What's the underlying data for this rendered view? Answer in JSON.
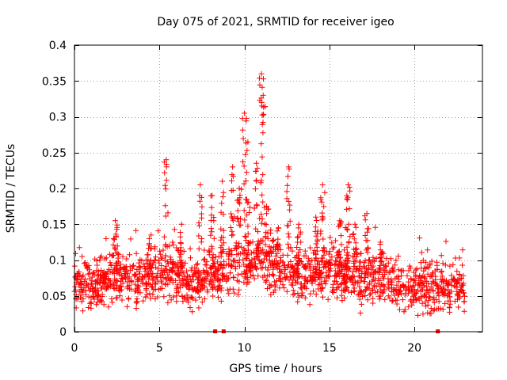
{
  "chart_data": {
    "type": "scatter",
    "title": "Day 075 of 2021, SRMTID for receiver igeo",
    "xlabel": "GPS time / hours",
    "ylabel": "SRMTID / TECUs",
    "xlim": [
      0,
      24
    ],
    "ylim": [
      0,
      0.4
    ],
    "xticks": [
      0,
      5,
      10,
      15,
      20
    ],
    "xtick_labels": [
      "0",
      "5",
      "10",
      "15",
      "20"
    ],
    "yticks": [
      0,
      0.05,
      0.1,
      0.15,
      0.2,
      0.25,
      0.3,
      0.35,
      0.4
    ],
    "ytick_labels": [
      "0",
      "0.05",
      "0.1",
      "0.15",
      "0.2",
      "0.25",
      "0.3",
      "0.35",
      "0.4"
    ],
    "grid": true,
    "marker": "plus",
    "series_color": "#ff0000",
    "data_range_hours": [
      0,
      23
    ],
    "background_level_by_hour": [
      [
        0,
        0.07
      ],
      [
        1,
        0.06
      ],
      [
        2,
        0.08
      ],
      [
        3,
        0.075
      ],
      [
        4,
        0.07
      ],
      [
        5,
        0.085
      ],
      [
        6,
        0.08
      ],
      [
        7,
        0.065
      ],
      [
        8,
        0.075
      ],
      [
        9,
        0.09
      ],
      [
        10,
        0.095
      ],
      [
        11,
        0.1
      ],
      [
        12,
        0.085
      ],
      [
        13,
        0.08
      ],
      [
        14,
        0.08
      ],
      [
        15,
        0.085
      ],
      [
        16,
        0.08
      ],
      [
        17,
        0.075
      ],
      [
        18,
        0.07
      ],
      [
        19,
        0.065
      ],
      [
        20,
        0.06
      ],
      [
        21,
        0.06
      ],
      [
        22,
        0.06
      ],
      [
        23,
        0.06
      ]
    ],
    "bursts": [
      [
        2.4,
        0.155
      ],
      [
        4.4,
        0.13
      ],
      [
        5.4,
        0.24
      ],
      [
        6.3,
        0.15
      ],
      [
        7.4,
        0.205
      ],
      [
        8.1,
        0.19
      ],
      [
        8.7,
        0.21
      ],
      [
        9.3,
        0.23
      ],
      [
        9.7,
        0.2
      ],
      [
        10.0,
        0.305
      ],
      [
        10.2,
        0.265
      ],
      [
        10.7,
        0.235
      ],
      [
        11.0,
        0.36
      ],
      [
        11.1,
        0.33
      ],
      [
        11.3,
        0.175
      ],
      [
        12.0,
        0.145
      ],
      [
        12.6,
        0.23
      ],
      [
        13.2,
        0.15
      ],
      [
        14.2,
        0.16
      ],
      [
        14.6,
        0.205
      ],
      [
        15.6,
        0.155
      ],
      [
        16.1,
        0.205
      ],
      [
        16.5,
        0.15
      ],
      [
        17.2,
        0.165
      ],
      [
        18.0,
        0.125
      ]
    ],
    "baseline_markers_x": [
      8.3,
      8.8,
      21.4
    ]
  }
}
